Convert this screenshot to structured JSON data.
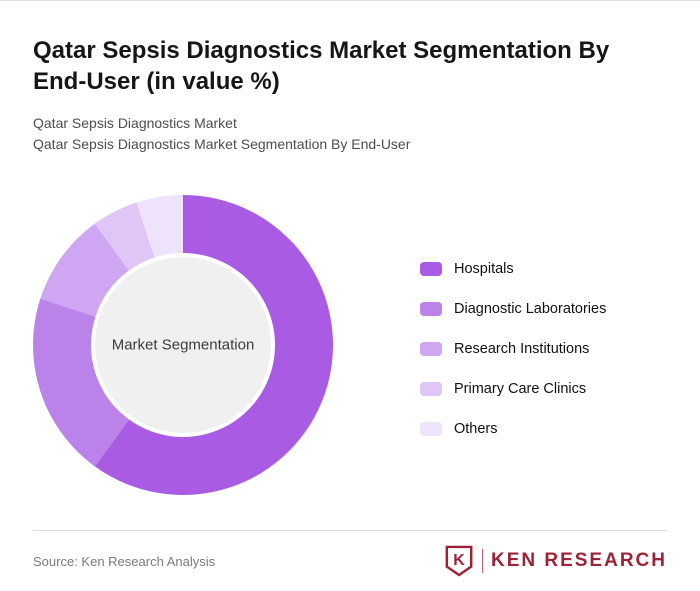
{
  "header": {
    "title": "Qatar Sepsis Diagnostics Market Segmentation By End-User (in value %)",
    "subtitle_line1": "Qatar Sepsis Diagnostics Market",
    "subtitle_line2": "Qatar Sepsis Diagnostics Market Segmentation By End-User"
  },
  "chart_data": {
    "type": "pie",
    "subtype": "donut",
    "title": "Qatar Sepsis Diagnostics Market Segmentation By End-User (in value %)",
    "center_label": "Market Segmentation",
    "categories": [
      "Hospitals",
      "Diagnostic Laboratories",
      "Research Institutions",
      "Primary Care Clinics",
      "Others"
    ],
    "values": [
      60,
      20,
      10,
      5,
      5
    ],
    "unit": "value %",
    "colors": [
      "#a95ce3",
      "#bb82ea",
      "#cfa6f1",
      "#dfc6f6",
      "#efe3fb"
    ],
    "center_circle_color": "#f0f0f1",
    "start_angle_deg": 0,
    "direction": "clockwise",
    "legend_position": "right",
    "data_labels": false,
    "grid": false
  },
  "footer": {
    "source": "Source: Ken Research Analysis",
    "brand_name": "KEN RESEARCH",
    "brand_icon_letter": "K",
    "brand_color": "#9d2235"
  }
}
